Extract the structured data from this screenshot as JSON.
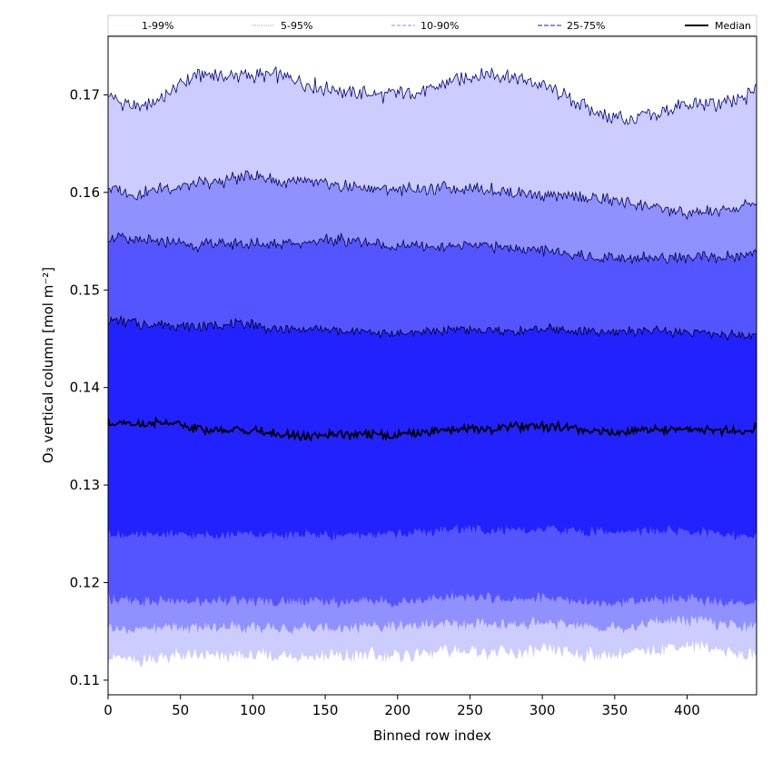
{
  "chart_data": {
    "type": "area",
    "title": "",
    "xlabel": "Binned row index",
    "ylabel": "O₃ vertical column [mol m⁻²]",
    "xlim": [
      0,
      448
    ],
    "ylim": [
      0.1085,
      0.176
    ],
    "xticks": [
      0,
      50,
      100,
      150,
      200,
      250,
      300,
      350,
      400
    ],
    "yticks": [
      0.11,
      0.12,
      0.13,
      0.14,
      0.15,
      0.16,
      0.17
    ],
    "ytick_labels": [
      "0.11",
      "0.12",
      "0.13",
      "0.14",
      "0.15",
      "0.16",
      "0.17"
    ],
    "grid": false,
    "legend_position": "top (above plot)",
    "x": [
      0,
      20,
      40,
      60,
      80,
      100,
      120,
      140,
      160,
      180,
      200,
      220,
      240,
      260,
      280,
      300,
      320,
      340,
      360,
      380,
      400,
      420,
      440,
      448
    ],
    "series": [
      {
        "name": "1-99%",
        "color": "#ccccff",
        "line_color": "#000080",
        "lower": [
          0.1125,
          0.112,
          0.1125,
          0.1125,
          0.1125,
          0.1125,
          0.1125,
          0.1125,
          0.1125,
          0.1125,
          0.1125,
          0.1128,
          0.113,
          0.113,
          0.1128,
          0.113,
          0.1128,
          0.1125,
          0.1128,
          0.1132,
          0.1135,
          0.1132,
          0.1125,
          0.1128
        ],
        "upper": [
          0.17,
          0.1685,
          0.17,
          0.172,
          0.172,
          0.172,
          0.172,
          0.171,
          0.1705,
          0.17,
          0.17,
          0.1705,
          0.1715,
          0.1722,
          0.1718,
          0.171,
          0.1695,
          0.168,
          0.1675,
          0.168,
          0.169,
          0.169,
          0.1695,
          0.171
        ]
      },
      {
        "name": "5-95%",
        "color": "#9090ff",
        "line_color": "#000060",
        "lower": [
          0.1155,
          0.1152,
          0.1155,
          0.1153,
          0.1155,
          0.1155,
          0.1153,
          0.1155,
          0.1153,
          0.1155,
          0.1155,
          0.1157,
          0.1158,
          0.1158,
          0.1157,
          0.1158,
          0.1157,
          0.1155,
          0.1155,
          0.116,
          0.1162,
          0.1158,
          0.1155,
          0.1158
        ],
        "upper": [
          0.1605,
          0.1598,
          0.1605,
          0.1608,
          0.1612,
          0.1618,
          0.161,
          0.161,
          0.1607,
          0.1605,
          0.1603,
          0.1603,
          0.1605,
          0.1603,
          0.16,
          0.1598,
          0.1595,
          0.1593,
          0.159,
          0.1585,
          0.1578,
          0.158,
          0.1585,
          0.1592
        ]
      },
      {
        "name": "10-90%",
        "color": "#5555ff",
        "line_color": "#000040",
        "lower": [
          0.1185,
          0.118,
          0.1182,
          0.118,
          0.1182,
          0.1182,
          0.118,
          0.1182,
          0.118,
          0.1182,
          0.118,
          0.1183,
          0.1185,
          0.1185,
          0.1183,
          0.1184,
          0.1182,
          0.118,
          0.118,
          0.1183,
          0.1183,
          0.118,
          0.1178,
          0.1182
        ],
        "upper": [
          0.1555,
          0.155,
          0.155,
          0.1545,
          0.1548,
          0.1547,
          0.1548,
          0.155,
          0.1552,
          0.1548,
          0.1545,
          0.1545,
          0.1545,
          0.1545,
          0.1543,
          0.154,
          0.1537,
          0.1533,
          0.1533,
          0.1533,
          0.1533,
          0.1533,
          0.1535,
          0.154
        ]
      },
      {
        "name": "25-75%",
        "color": "#2222ff",
        "line_color": "#000020",
        "lower": [
          0.125,
          0.1248,
          0.125,
          0.1248,
          0.125,
          0.125,
          0.1248,
          0.125,
          0.1248,
          0.125,
          0.125,
          0.1252,
          0.1255,
          0.1255,
          0.1253,
          0.1255,
          0.1253,
          0.1252,
          0.1252,
          0.1253,
          0.1253,
          0.125,
          0.1248,
          0.125
        ],
        "upper": [
          0.147,
          0.1465,
          0.1465,
          0.1462,
          0.1465,
          0.1465,
          0.1458,
          0.146,
          0.1458,
          0.1457,
          0.1455,
          0.1457,
          0.146,
          0.1458,
          0.1458,
          0.146,
          0.1458,
          0.1457,
          0.1458,
          0.1458,
          0.1457,
          0.1455,
          0.1452,
          0.1458
        ]
      },
      {
        "name": "Median",
        "color": "#000000",
        "values": [
          0.1365,
          0.1362,
          0.1365,
          0.1358,
          0.1356,
          0.1356,
          0.1352,
          0.135,
          0.1352,
          0.1352,
          0.1352,
          0.1355,
          0.1358,
          0.1357,
          0.136,
          0.136,
          0.1358,
          0.1355,
          0.1355,
          0.1357,
          0.1357,
          0.1357,
          0.1353,
          0.136
        ]
      }
    ]
  }
}
